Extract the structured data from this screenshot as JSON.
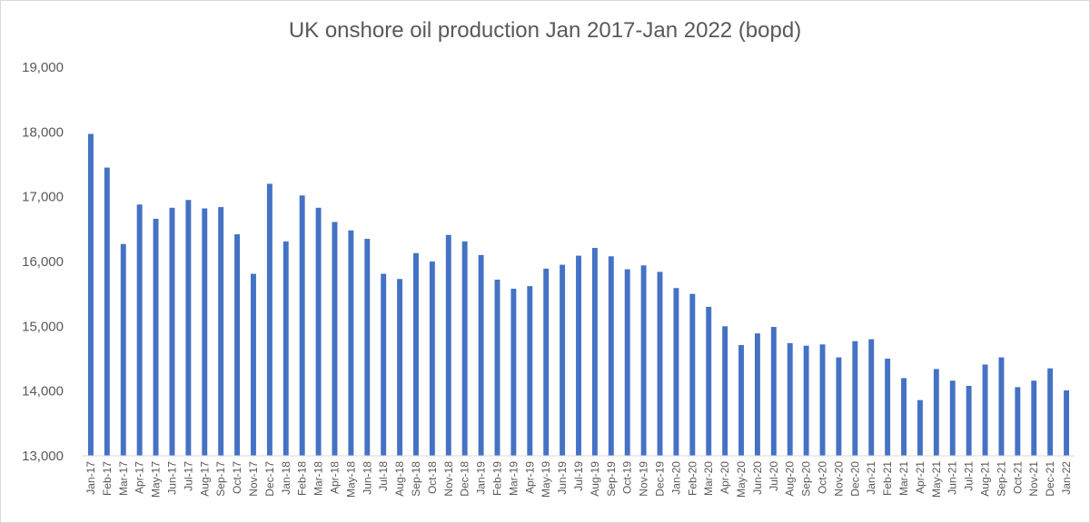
{
  "chart_data": {
    "type": "bar",
    "title": "UK onshore oil production Jan 2017-Jan 2022 (bopd)",
    "xlabel": "",
    "ylabel": "",
    "ylim": [
      13000,
      19000
    ],
    "yticks": [
      "13,000",
      "14,000",
      "15,000",
      "16,000",
      "17,000",
      "18,000",
      "19,000"
    ],
    "grid": false,
    "bar_color": "#4472C4",
    "categories": [
      "Jan-17",
      "Feb-17",
      "Mar-17",
      "Apr-17",
      "May-17",
      "Jun-17",
      "Jul-17",
      "Aug-17",
      "Sep-17",
      "Oct-17",
      "Nov-17",
      "Dec-17",
      "Jan-18",
      "Feb-18",
      "Mar-18",
      "Apr-18",
      "May-18",
      "Jun-18",
      "Jul-18",
      "Aug-18",
      "Sep-18",
      "Oct-18",
      "Nov-18",
      "Dec-18",
      "Jan-19",
      "Feb-19",
      "Mar-19",
      "Apr-19",
      "May-19",
      "Jun-19",
      "Jul-19",
      "Aug-19",
      "Sep-19",
      "Oct-19",
      "Nov-19",
      "Dec-19",
      "Jan-20",
      "Feb-20",
      "Mar-20",
      "Apr-20",
      "May-20",
      "Jun-20",
      "Jul-20",
      "Aug-20",
      "Sep-20",
      "Oct-20",
      "Nov-20",
      "Dec-20",
      "Jan-21",
      "Feb-21",
      "Mar-21",
      "Apr-21",
      "May-21",
      "Jun-21",
      "Jul-21",
      "Aug-21",
      "Sep-21",
      "Oct-21",
      "Nov-21",
      "Dec-21",
      "Jan-22"
    ],
    "values": [
      17970,
      17450,
      16270,
      16880,
      16660,
      16830,
      16950,
      16820,
      16840,
      16420,
      15810,
      17200,
      16310,
      17020,
      16830,
      16610,
      16480,
      16350,
      15810,
      15730,
      16130,
      16000,
      16410,
      16310,
      16100,
      15720,
      15580,
      15620,
      15890,
      15950,
      16090,
      16210,
      16080,
      15880,
      15940,
      15840,
      15590,
      15500,
      15300,
      15000,
      14710,
      14890,
      14990,
      14740,
      14700,
      14720,
      14520,
      14770,
      14800,
      14500,
      14200,
      13860,
      14340,
      14160,
      14080,
      14410,
      14520,
      14060,
      14160,
      14350,
      14010
    ]
  }
}
